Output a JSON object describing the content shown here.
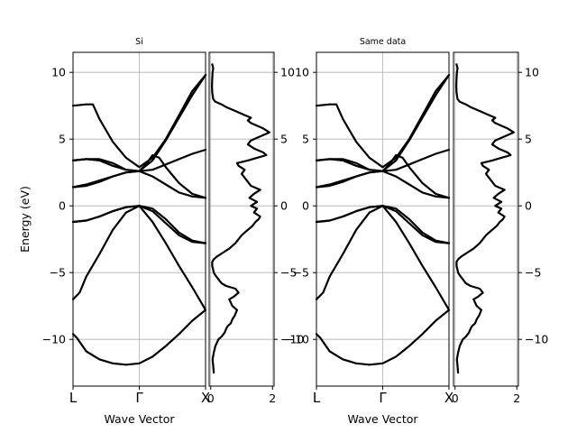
{
  "chart_data": [
    {
      "type": "line",
      "panel": "band-structure",
      "title": "Si",
      "xlabel": "Wave Vector",
      "ylabel": "Energy (eV)",
      "x_ticks": [
        "L",
        "Γ",
        "X"
      ],
      "y_ticks": [
        10,
        5,
        0,
        -5,
        -10
      ],
      "ylim": [
        -13.5,
        11.5
      ],
      "grid": true,
      "x_kpoints": [
        0,
        0.5,
        1
      ],
      "series": [
        {
          "x": [
            0,
            0.03,
            0.1,
            0.2,
            0.3,
            0.4,
            0.5,
            0.6,
            0.7,
            0.8,
            0.9,
            1.0
          ],
          "values": [
            -9.6,
            -9.9,
            -10.9,
            -11.5,
            -11.8,
            -11.9,
            -11.8,
            -11.3,
            -10.5,
            -9.6,
            -8.6,
            -7.8
          ]
        },
        {
          "x": [
            0,
            0.05,
            0.1,
            0.2,
            0.3,
            0.4,
            0.5,
            0.6,
            0.7,
            0.8,
            0.9,
            1.0
          ],
          "values": [
            -7.0,
            -6.5,
            -5.3,
            -3.6,
            -1.8,
            -0.5,
            0.0,
            -1.2,
            -2.8,
            -4.5,
            -6.1,
            -7.8
          ]
        },
        {
          "x": [
            0,
            0.1,
            0.2,
            0.3,
            0.4,
            0.5,
            0.6,
            0.7,
            0.8,
            0.9,
            1.0
          ],
          "values": [
            -1.2,
            -1.1,
            -0.8,
            -0.4,
            -0.1,
            0.0,
            -0.4,
            -1.3,
            -2.2,
            -2.7,
            -2.8
          ]
        },
        {
          "x": [
            0,
            0.1,
            0.2,
            0.3,
            0.4,
            0.5,
            0.6,
            0.7,
            0.8,
            0.9,
            1.0
          ],
          "values": [
            -1.2,
            -1.1,
            -0.8,
            -0.4,
            -0.1,
            0.0,
            -0.2,
            -1.0,
            -2.0,
            -2.6,
            -2.8
          ]
        },
        {
          "x": [
            0,
            0.1,
            0.2,
            0.3,
            0.4,
            0.5,
            0.6,
            0.7,
            0.8,
            0.9,
            1.0
          ],
          "values": [
            1.4,
            1.5,
            1.8,
            2.2,
            2.5,
            2.6,
            2.2,
            1.6,
            1.0,
            0.7,
            0.6
          ]
        },
        {
          "x": [
            0,
            0.1,
            0.2,
            0.3,
            0.4,
            0.5,
            0.55,
            0.6,
            0.65,
            0.7,
            0.8,
            0.9,
            1.0
          ],
          "values": [
            3.4,
            3.5,
            3.5,
            3.2,
            2.7,
            2.6,
            3.1,
            3.8,
            3.6,
            2.9,
            1.7,
            0.9,
            0.6
          ]
        },
        {
          "x": [
            0,
            0.1,
            0.2,
            0.3,
            0.4,
            0.5,
            0.6,
            0.7,
            0.8,
            0.9,
            1.0
          ],
          "values": [
            3.4,
            3.5,
            3.4,
            3.0,
            2.7,
            2.6,
            2.7,
            3.1,
            3.5,
            3.9,
            4.2
          ]
        },
        {
          "x": [
            0,
            0.1,
            0.15,
            0.2,
            0.3,
            0.4,
            0.5,
            0.6,
            0.7,
            0.8,
            0.9,
            1.0
          ],
          "values": [
            7.5,
            7.6,
            7.6,
            6.5,
            4.8,
            3.6,
            2.9,
            3.6,
            5.0,
            6.8,
            8.6,
            9.8
          ]
        },
        {
          "x": [
            0,
            0.1,
            0.2,
            0.3,
            0.4,
            0.5,
            0.6,
            0.7,
            0.8,
            0.9,
            1.0
          ],
          "values": [
            1.4,
            1.6,
            1.9,
            2.2,
            2.5,
            2.6,
            3.4,
            4.9,
            6.6,
            8.3,
            9.8
          ]
        }
      ]
    },
    {
      "type": "line",
      "panel": "dos",
      "x_ticks": [
        0,
        2
      ],
      "y_ticks": [
        10,
        5,
        0,
        -5,
        -10
      ],
      "xlim": [
        -0.05,
        2.05
      ],
      "ylim": [
        -13.5,
        11.5
      ],
      "grid": true,
      "series": [
        {
          "x": [
            0.1,
            0.08,
            0.06,
            0.1,
            0.15,
            0.25,
            0.35,
            0.45,
            0.5,
            0.55,
            0.65,
            0.7,
            0.78,
            0.85,
            0.7,
            0.6,
            0.75,
            0.9,
            0.8,
            0.5,
            0.35,
            0.25,
            0.15,
            0.1,
            0.08,
            0.05,
            0.05,
            0.1,
            0.2,
            0.4,
            0.6,
            0.7,
            0.8,
            0.9,
            1.0,
            1.1,
            1.2,
            1.35,
            1.45,
            1.55,
            1.6,
            1.4,
            1.5,
            1.3,
            1.5,
            1.25,
            1.4,
            1.6,
            1.3,
            1.2,
            1.1,
            1.0,
            1.1,
            0.9,
            0.85,
            1.2,
            1.5,
            1.8,
            1.7,
            1.4,
            1.2,
            1.3,
            1.6,
            1.9,
            1.7,
            1.5,
            1.3,
            1.2,
            1.3,
            1.1,
            0.9,
            0.7,
            0.5,
            0.35,
            0.15,
            0.08,
            0.05,
            0.04,
            0.05,
            0.06,
            0.08,
            0.06,
            0.05
          ],
          "values": [
            -12.5,
            -12.0,
            -11.5,
            -11.0,
            -10.5,
            -10.0,
            -9.8,
            -9.5,
            -9.2,
            -9.0,
            -8.8,
            -8.5,
            -8.2,
            -7.8,
            -7.5,
            -7.0,
            -6.8,
            -6.5,
            -6.2,
            -6.0,
            -5.8,
            -5.5,
            -5.2,
            -5.0,
            -4.8,
            -4.5,
            -4.2,
            -4.0,
            -3.8,
            -3.5,
            -3.2,
            -3.0,
            -2.8,
            -2.5,
            -2.2,
            -2.0,
            -1.8,
            -1.5,
            -1.2,
            -1.0,
            -0.8,
            -0.5,
            -0.2,
            0.0,
            0.3,
            0.6,
            0.9,
            1.2,
            1.5,
            1.8,
            2.1,
            2.4,
            2.7,
            3.0,
            3.2,
            3.4,
            3.6,
            3.8,
            4.0,
            4.3,
            4.6,
            4.9,
            5.2,
            5.5,
            5.8,
            6.0,
            6.2,
            6.4,
            6.6,
            6.8,
            7.0,
            7.2,
            7.4,
            7.6,
            7.8,
            8.0,
            8.5,
            9.0,
            9.5,
            10.0,
            10.3,
            10.5,
            10.6
          ]
        }
      ]
    },
    {
      "type": "line",
      "panel": "band-structure",
      "title": "Same data",
      "xlabel": "Wave Vector",
      "ylabel": "",
      "x_ticks": [
        "L",
        "Γ",
        "X"
      ],
      "y_ticks": [
        10,
        5,
        0,
        -5,
        -10
      ],
      "ylim": [
        -13.5,
        11.5
      ],
      "grid": true,
      "same_as_panel": 0
    },
    {
      "type": "line",
      "panel": "dos",
      "x_ticks": [
        0,
        2
      ],
      "y_ticks": [
        10,
        5,
        0,
        -5,
        -10
      ],
      "xlim": [
        -0.05,
        2.05
      ],
      "ylim": [
        -13.5,
        11.5
      ],
      "grid": true,
      "same_as_panel": 1
    }
  ]
}
